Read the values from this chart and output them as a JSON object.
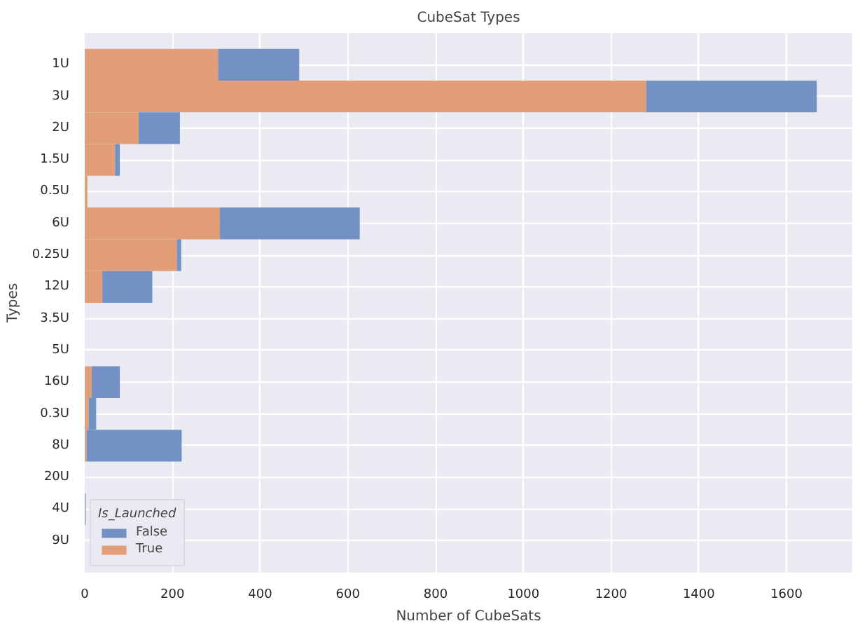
{
  "chart_data": {
    "type": "bar",
    "orientation": "horizontal",
    "stacked": true,
    "title": "CubeSat Types",
    "xlabel": "Number of CubeSats",
    "ylabel": "Types",
    "legend_title": "Is_Launched",
    "categories": [
      "1U",
      "3U",
      "2U",
      "1.5U",
      "0.5U",
      "6U",
      "0.25U",
      "12U",
      "3.5U",
      "5U",
      "16U",
      "0.3U",
      "8U",
      "20U",
      "4U",
      "9U"
    ],
    "series": [
      {
        "name": "True",
        "color": "#e19e79",
        "values": [
          304,
          1280,
          123,
          69,
          6,
          308,
          210,
          40,
          0,
          0,
          16,
          9,
          4,
          0,
          0,
          0
        ]
      },
      {
        "name": "False",
        "color": "#7392c3",
        "values": [
          185,
          389,
          94,
          11,
          0,
          319,
          10,
          114,
          0,
          0,
          64,
          17,
          217,
          0,
          2,
          0
        ]
      }
    ],
    "xlim": [
      0,
      1750
    ],
    "xticks": [
      0,
      200,
      400,
      600,
      800,
      1000,
      1200,
      1400,
      1600
    ],
    "grid": true,
    "legend": "bottom left"
  }
}
